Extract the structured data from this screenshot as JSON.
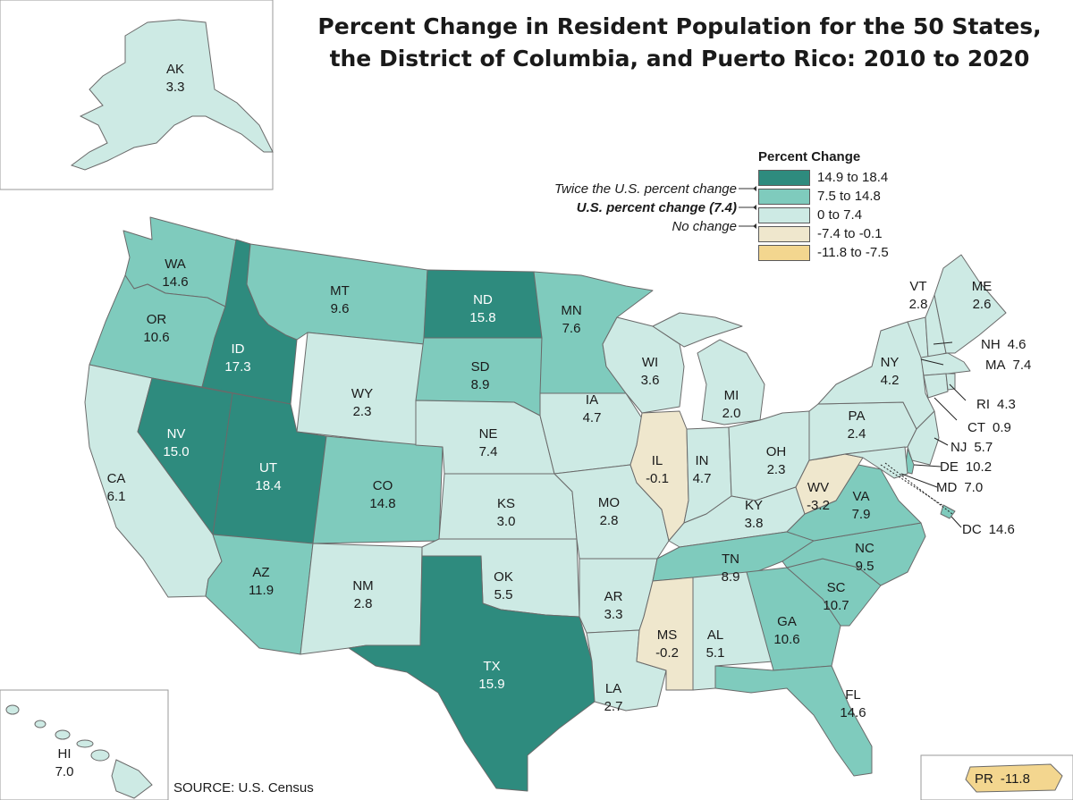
{
  "title_line1": "Percent Change in Resident Population for the 50 States,",
  "title_line2": "the District of Columbia, and Puerto Rico: 2010 to 2020",
  "source": "SOURCE:  U.S. Census",
  "legend": {
    "title": "Percent Change",
    "classes": [
      {
        "label": "14.9 to 18.4",
        "color": "#2e8b7e"
      },
      {
        "label": "7.5 to 14.8",
        "color": "#7fcbbd"
      },
      {
        "label": "0 to 7.4",
        "color": "#cdeae4"
      },
      {
        "label": "-7.4 to -0.1",
        "color": "#efe7cd"
      },
      {
        "label": "-11.8 to -7.5",
        "color": "#f3d68f"
      }
    ],
    "notes": {
      "twice": "Twice the U.S. percent change",
      "us": "U.S. percent change (7.4)",
      "none": "No change"
    }
  },
  "states": [
    {
      "abbr": "WA",
      "value": "14.6"
    },
    {
      "abbr": "OR",
      "value": "10.6"
    },
    {
      "abbr": "CA",
      "value": "6.1"
    },
    {
      "abbr": "ID",
      "value": "17.3"
    },
    {
      "abbr": "NV",
      "value": "15.0"
    },
    {
      "abbr": "MT",
      "value": "9.6"
    },
    {
      "abbr": "WY",
      "value": "2.3"
    },
    {
      "abbr": "UT",
      "value": "18.4"
    },
    {
      "abbr": "AZ",
      "value": "11.9"
    },
    {
      "abbr": "CO",
      "value": "14.8"
    },
    {
      "abbr": "NM",
      "value": "2.8"
    },
    {
      "abbr": "ND",
      "value": "15.8"
    },
    {
      "abbr": "SD",
      "value": "8.9"
    },
    {
      "abbr": "NE",
      "value": "7.4"
    },
    {
      "abbr": "KS",
      "value": "3.0"
    },
    {
      "abbr": "OK",
      "value": "5.5"
    },
    {
      "abbr": "TX",
      "value": "15.9"
    },
    {
      "abbr": "MN",
      "value": "7.6"
    },
    {
      "abbr": "IA",
      "value": "4.7"
    },
    {
      "abbr": "MO",
      "value": "2.8"
    },
    {
      "abbr": "AR",
      "value": "3.3"
    },
    {
      "abbr": "LA",
      "value": "2.7"
    },
    {
      "abbr": "WI",
      "value": "3.6"
    },
    {
      "abbr": "IL",
      "value": "-0.1"
    },
    {
      "abbr": "MI",
      "value": "2.0"
    },
    {
      "abbr": "IN",
      "value": "4.7"
    },
    {
      "abbr": "OH",
      "value": "2.3"
    },
    {
      "abbr": "KY",
      "value": "3.8"
    },
    {
      "abbr": "TN",
      "value": "8.9"
    },
    {
      "abbr": "MS",
      "value": "-0.2"
    },
    {
      "abbr": "AL",
      "value": "5.1"
    },
    {
      "abbr": "GA",
      "value": "10.6"
    },
    {
      "abbr": "FL",
      "value": "14.6"
    },
    {
      "abbr": "SC",
      "value": "10.7"
    },
    {
      "abbr": "NC",
      "value": "9.5"
    },
    {
      "abbr": "VA",
      "value": "7.9"
    },
    {
      "abbr": "WV",
      "value": "-3.2"
    },
    {
      "abbr": "PA",
      "value": "2.4"
    },
    {
      "abbr": "NY",
      "value": "4.2"
    },
    {
      "abbr": "VT",
      "value": "2.8"
    },
    {
      "abbr": "ME",
      "value": "2.6"
    },
    {
      "abbr": "NH",
      "value": "4.6"
    },
    {
      "abbr": "MA",
      "value": "7.4"
    },
    {
      "abbr": "RI",
      "value": "4.3"
    },
    {
      "abbr": "CT",
      "value": "0.9"
    },
    {
      "abbr": "NJ",
      "value": "5.7"
    },
    {
      "abbr": "DE",
      "value": "10.2"
    },
    {
      "abbr": "MD",
      "value": "7.0"
    },
    {
      "abbr": "DC",
      "value": "14.6"
    },
    {
      "abbr": "AK",
      "value": "3.3"
    },
    {
      "abbr": "HI",
      "value": "7.0"
    },
    {
      "abbr": "PR",
      "value": "-11.8"
    }
  ]
}
